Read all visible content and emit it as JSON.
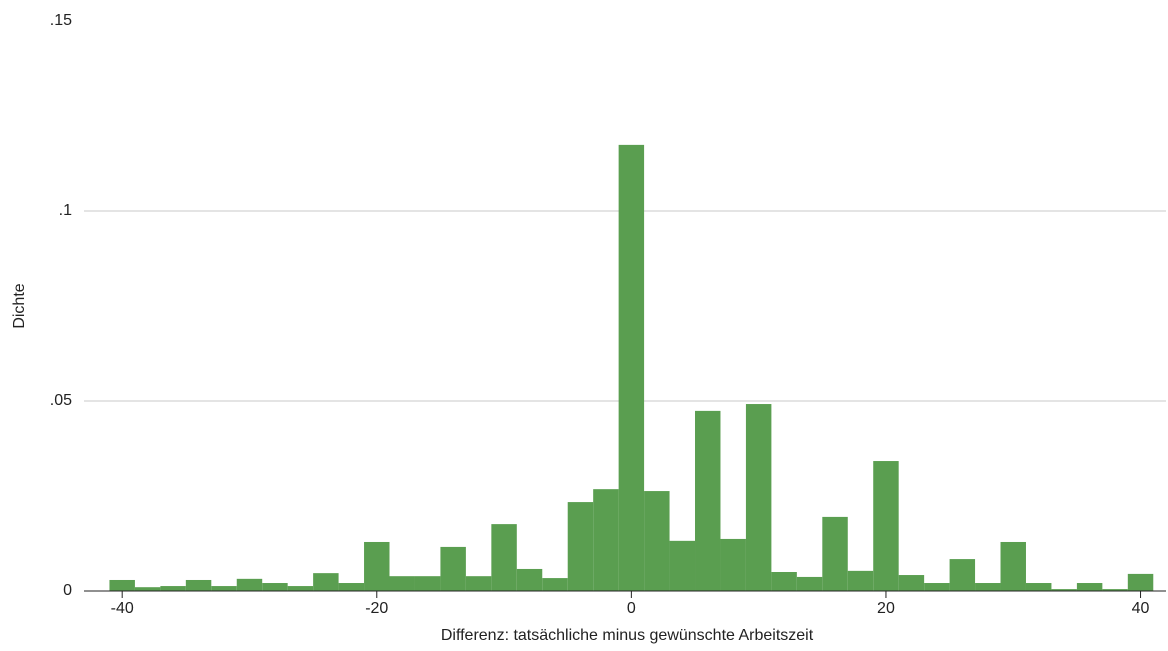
{
  "chart_data": {
    "type": "histogram",
    "x_label": "Differenz: tatsächliche minus gewünschte Arbeitszeit",
    "y_label": "Dichte",
    "bins": [
      -41,
      -39,
      -37,
      -35,
      -33,
      -31,
      -29,
      -27,
      -25,
      -23,
      -21,
      -19,
      -17,
      -15,
      -13,
      -11,
      -9,
      -7,
      -5,
      -3,
      -1,
      1,
      3,
      5,
      7,
      9,
      11,
      13,
      15,
      17,
      19,
      21,
      23,
      25,
      27,
      29,
      31,
      33,
      35,
      37,
      39,
      41
    ],
    "values": [
      0.0029,
      0.001,
      0.0013,
      0.0029,
      0.0013,
      0.0032,
      0.0021,
      0.0013,
      0.0047,
      0.0021,
      0.0129,
      0.0039,
      0.0039,
      0.0116,
      0.0039,
      0.0176,
      0.0058,
      0.0034,
      0.0234,
      0.0268,
      0.1174,
      0.0263,
      0.0132,
      0.0474,
      0.0137,
      0.0492,
      0.005,
      0.0037,
      0.0195,
      0.0053,
      0.0342,
      0.0042,
      0.0021,
      0.0084,
      0.0021,
      0.0129,
      0.0021,
      0.0005,
      0.0021,
      0.0005,
      0.0045
    ],
    "color": "#5a9e50",
    "xlim": [
      -43,
      42
    ],
    "ylim": [
      0,
      0.15
    ],
    "xticks": [
      -40,
      -20,
      0,
      20,
      40
    ],
    "yticks": [
      0,
      {
        "value": 0.05,
        "label": ".05"
      },
      {
        "value": 0.1,
        "label": ".1"
      },
      {
        "value": 0.15,
        "label": ".15"
      }
    ],
    "grid": true
  }
}
